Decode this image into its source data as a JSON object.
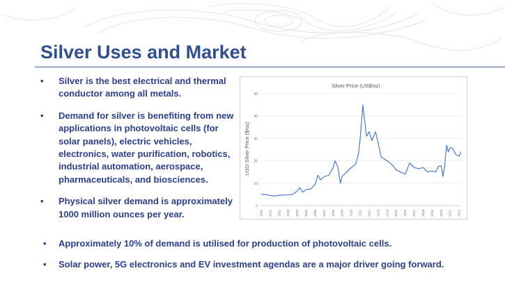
{
  "slide": {
    "title": "Silver Uses and Market",
    "bullets": [
      "Silver is the best electrical and thermal conductor among all metals.",
      "Demand for silver is benefiting from new applications in photovoltaic cells (for solar panels), electric vehicles, electronics, water purification, robotics, industrial automation, aerospace, pharmaceuticals, and biosciences.",
      "Physical silver demand is approximately 1000 million ounces per year."
    ],
    "bottom_bullets": [
      "Approximately 10% of demand is utilised for production of photovoltaic cells.",
      "Solar power, 5G electronics and EV investment agendas are a major driver going forward."
    ],
    "bullet_symbol": "•"
  },
  "colors": {
    "title": "#2f4f8f",
    "text": "#2a3f8a",
    "line": "#3b6fc9",
    "rule": "#b5c2d6"
  },
  "chart_data": {
    "type": "line",
    "title": "Silver Price (US$/oz)",
    "ylabel": "USD Silver Price ($/oz)",
    "xlabel": "",
    "ylim": [
      0,
      50
    ],
    "yticks": [
      "0",
      "10",
      "20",
      "30",
      "40",
      "50"
    ],
    "xticks": [
      "2000",
      "2001",
      "2002",
      "2003",
      "2004",
      "2005",
      "2006",
      "2007",
      "2008",
      "2009",
      "2010",
      "2011",
      "2012",
      "2013",
      "2014",
      "2015",
      "2016",
      "2017",
      "2018",
      "2019",
      "2020",
      "2021",
      "2022"
    ],
    "xlim": [
      2000,
      2022.3
    ],
    "grid": true,
    "series": [
      {
        "x": [
          2000,
          2000.5,
          2001,
          2001.5,
          2002,
          2002.5,
          2003,
          2003.5,
          2004,
          2004.3,
          2004.6,
          2005,
          2005.5,
          2006,
          2006.3,
          2006.6,
          2007,
          2007.5,
          2008,
          2008.2,
          2008.5,
          2008.8,
          2009,
          2009.5,
          2010,
          2010.5,
          2010.8,
          2011,
          2011.3,
          2011.5,
          2011.7,
          2012,
          2012.3,
          2012.7,
          2013,
          2013.3,
          2013.6,
          2014,
          2014.5,
          2015,
          2015.5,
          2016,
          2016.5,
          2017,
          2017.5,
          2018,
          2018.5,
          2019,
          2019.4,
          2019.7,
          2020,
          2020.2,
          2020.4,
          2020.6,
          2020.8,
          2021,
          2021.3,
          2021.6,
          2022,
          2022.2
        ],
        "y": [
          5.0,
          4.9,
          4.5,
          4.3,
          4.6,
          4.7,
          4.8,
          5.0,
          6.5,
          8.0,
          6.0,
          7.2,
          7.4,
          9.5,
          13.5,
          11.5,
          13.0,
          13.5,
          17.0,
          20.0,
          17.5,
          10.0,
          13.0,
          15.0,
          17.0,
          18.5,
          23.0,
          30.0,
          45.0,
          38.0,
          31.0,
          33.0,
          29.0,
          33.0,
          28.0,
          22.0,
          21.0,
          20.0,
          18.5,
          16.0,
          15.0,
          14.0,
          19.0,
          17.0,
          16.5,
          17.0,
          15.0,
          15.5,
          15.0,
          17.5,
          17.8,
          13.0,
          18.0,
          27.0,
          24.0,
          26.0,
          25.5,
          23.0,
          22.0,
          24.0
        ]
      }
    ]
  }
}
